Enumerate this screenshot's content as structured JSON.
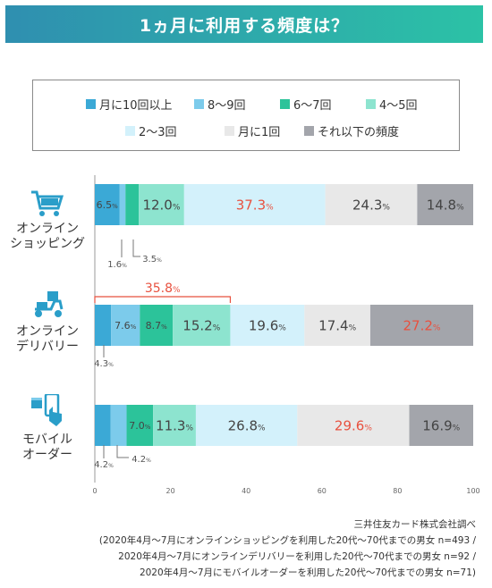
{
  "title": "1ヵ月に利用する頻度は？",
  "legend": [
    {
      "label": "月に10回以上",
      "color": "#3ba9d6"
    },
    {
      "label": "8〜9回",
      "color": "#7ccbeb"
    },
    {
      "label": "6〜7回",
      "color": "#2cc39a"
    },
    {
      "label": "4〜5回",
      "color": "#8de4cf"
    },
    {
      "label": "2〜3回",
      "color": "#d3f1fb"
    },
    {
      "label": "月に1回",
      "color": "#e8e8e8"
    },
    {
      "label": "それ以下の頻度",
      "color": "#a3a5ab"
    }
  ],
  "rows": [
    {
      "label_lines": [
        "オンライン",
        "ショッピング"
      ],
      "icon": "shopping-cart-icon"
    },
    {
      "label_lines": [
        "オンライン",
        "デリバリー"
      ],
      "icon": "delivery-scooter-icon"
    },
    {
      "label_lines": [
        "モバイル",
        "オーダー"
      ],
      "icon": "mobile-order-icon"
    }
  ],
  "chart_data": {
    "type": "bar",
    "stacked": true,
    "orientation": "horizontal",
    "categories": [
      "オンラインショッピング",
      "オンラインデリバリー",
      "モバイルオーダー"
    ],
    "series": [
      {
        "name": "月に10回以上",
        "values": [
          6.5,
          4.3,
          4.2
        ]
      },
      {
        "name": "8〜9回",
        "values": [
          1.6,
          7.6,
          4.2
        ]
      },
      {
        "name": "6〜7回",
        "values": [
          3.5,
          8.7,
          7.0
        ]
      },
      {
        "name": "4〜5回",
        "values": [
          12.0,
          15.2,
          11.3
        ]
      },
      {
        "name": "2〜3回",
        "values": [
          37.3,
          19.6,
          26.8
        ]
      },
      {
        "name": "月に1回",
        "values": [
          24.3,
          17.4,
          29.6
        ]
      },
      {
        "name": "それ以下の頻度",
        "values": [
          14.8,
          27.2,
          16.9
        ]
      }
    ],
    "highlight_color": "#e8513f",
    "highlights": [
      {
        "category": 0,
        "series": 4
      },
      {
        "category": 1,
        "series": 6
      },
      {
        "category": 2,
        "series": 5
      }
    ],
    "bracket": {
      "category": 1,
      "from_series": 0,
      "to_series": 3,
      "label": "35.8%",
      "value": 35.8
    },
    "x_ticks": [
      0,
      20,
      40,
      60,
      80,
      100
    ],
    "xlim": [
      0,
      100
    ],
    "unit": "%"
  },
  "source": [
    "三井住友カード株式会社調べ",
    "(2020年4月〜7月にオンラインショッピングを利用した20代〜70代までの男女 n=493 /",
    "2020年4月〜7月にオンラインデリバリーを利用した20代〜70代までの男女 n=92 /",
    "2020年4月〜7月にモバイルオーダーを利用した20代〜70代までの男女 n=71)"
  ]
}
